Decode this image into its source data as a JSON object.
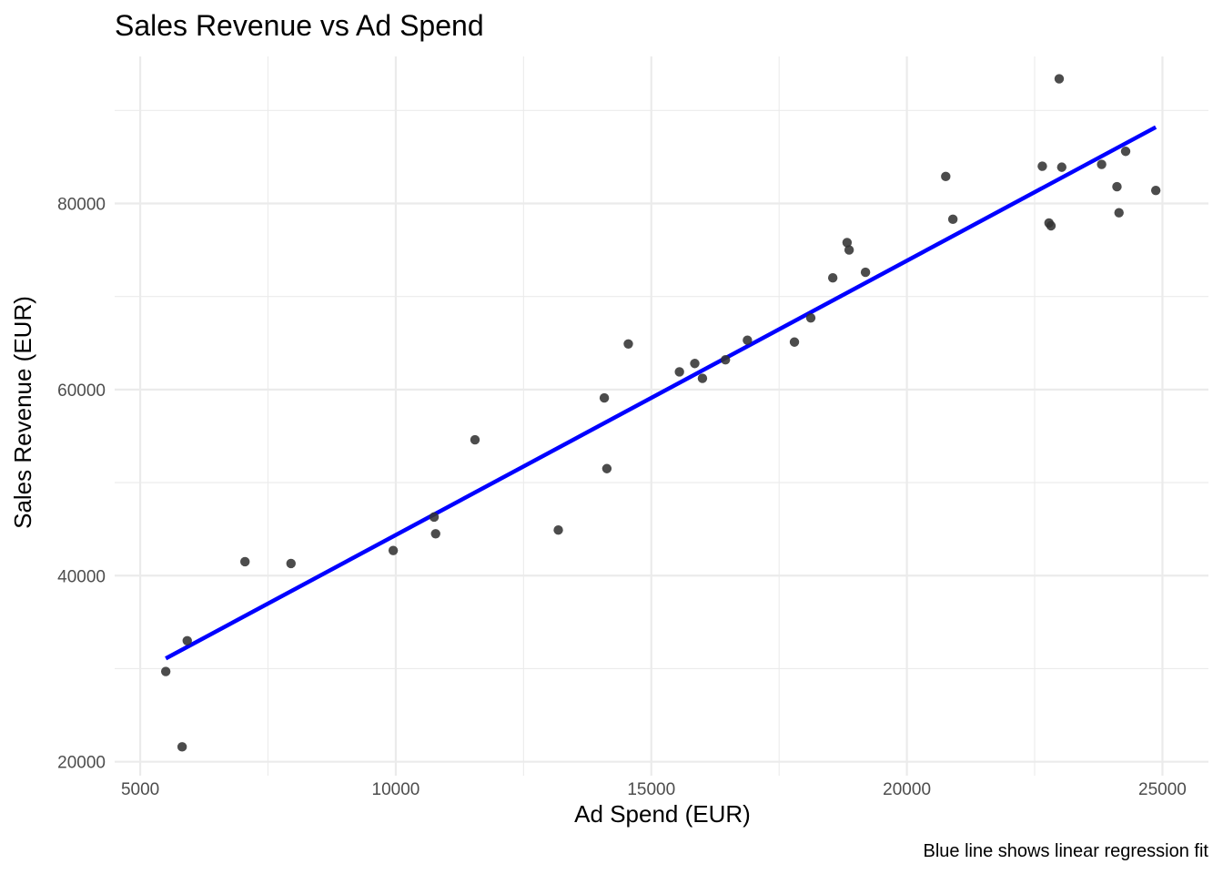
{
  "chart_data": {
    "type": "scatter",
    "title": "Sales Revenue vs Ad Spend",
    "xlabel": "Ad Spend (EUR)",
    "ylabel": "Sales Revenue (EUR)",
    "caption": "Blue line shows linear regression fit",
    "xlim": [
      4500,
      25900
    ],
    "ylim": [
      18500,
      95800
    ],
    "x_ticks": [
      5000,
      10000,
      15000,
      20000,
      25000
    ],
    "x_minor_ticks": [
      7500,
      12500,
      17500,
      22500
    ],
    "y_ticks": [
      20000,
      40000,
      60000,
      80000
    ],
    "y_minor_ticks": [
      30000,
      50000,
      70000,
      90000
    ],
    "grid": true,
    "point_color": "#333333",
    "line_color": "#0000ff",
    "points": [
      {
        "x": 5500,
        "y": 29700
      },
      {
        "x": 5820,
        "y": 21600
      },
      {
        "x": 5920,
        "y": 33000
      },
      {
        "x": 7050,
        "y": 41500
      },
      {
        "x": 7950,
        "y": 41300
      },
      {
        "x": 9950,
        "y": 42700
      },
      {
        "x": 10750,
        "y": 46300
      },
      {
        "x": 10780,
        "y": 44500
      },
      {
        "x": 11550,
        "y": 54600
      },
      {
        "x": 13180,
        "y": 44900
      },
      {
        "x": 14080,
        "y": 59100
      },
      {
        "x": 14130,
        "y": 51500
      },
      {
        "x": 14550,
        "y": 64900
      },
      {
        "x": 15550,
        "y": 61900
      },
      {
        "x": 15850,
        "y": 62800
      },
      {
        "x": 16000,
        "y": 61200
      },
      {
        "x": 16450,
        "y": 63200
      },
      {
        "x": 16880,
        "y": 65300
      },
      {
        "x": 17800,
        "y": 65100
      },
      {
        "x": 18120,
        "y": 67700
      },
      {
        "x": 18550,
        "y": 72000
      },
      {
        "x": 18830,
        "y": 75800
      },
      {
        "x": 18870,
        "y": 75000
      },
      {
        "x": 19190,
        "y": 72600
      },
      {
        "x": 20760,
        "y": 82900
      },
      {
        "x": 20900,
        "y": 78300
      },
      {
        "x": 22650,
        "y": 84000
      },
      {
        "x": 22780,
        "y": 77900
      },
      {
        "x": 22820,
        "y": 77600
      },
      {
        "x": 22980,
        "y": 93400
      },
      {
        "x": 23030,
        "y": 83900
      },
      {
        "x": 23810,
        "y": 84200
      },
      {
        "x": 24110,
        "y": 81800
      },
      {
        "x": 24150,
        "y": 79000
      },
      {
        "x": 24280,
        "y": 85600
      },
      {
        "x": 24870,
        "y": 81400
      }
    ],
    "fit_line": [
      {
        "x": 5500,
        "y": 31100
      },
      {
        "x": 24870,
        "y": 88200
      }
    ]
  }
}
